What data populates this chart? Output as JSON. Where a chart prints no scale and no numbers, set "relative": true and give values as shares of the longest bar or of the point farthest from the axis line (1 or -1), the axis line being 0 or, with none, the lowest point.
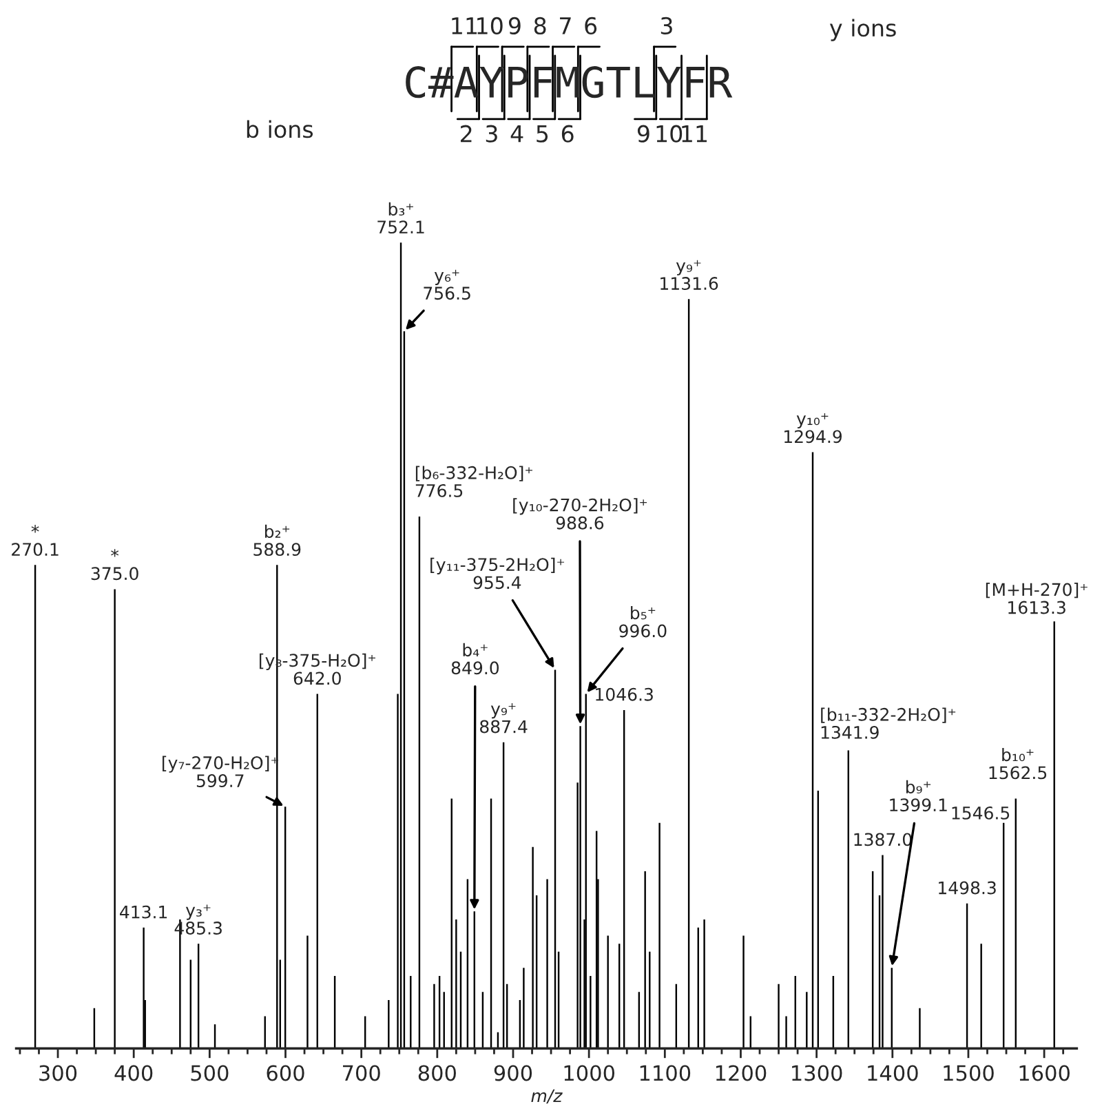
{
  "chart_data": {
    "type": "bar",
    "relative": true,
    "xlabel": "m/z",
    "color": "#000000",
    "x": [
      270.1,
      348,
      375.0,
      413.1,
      415,
      461,
      475,
      485.3,
      507,
      573,
      588.9,
      593,
      599.7,
      629,
      642.0,
      665,
      705,
      736,
      748,
      752.1,
      756.5,
      765,
      776.5,
      796,
      803,
      809,
      819,
      825,
      831,
      840,
      849.0,
      860,
      871,
      880,
      887.4,
      892,
      909,
      914,
      926,
      931,
      945,
      955.4,
      960,
      985,
      988.6,
      994,
      996.0,
      1002,
      1010,
      1012,
      1025,
      1040,
      1046.3,
      1066,
      1074,
      1080,
      1093,
      1115,
      1131.6,
      1144,
      1152,
      1203.7,
      1213,
      1250,
      1260,
      1272,
      1287,
      1294.9,
      1302,
      1322,
      1341.9,
      1374,
      1383,
      1387.0,
      1399.1,
      1436,
      1498.3,
      1517,
      1546.5,
      1562.5,
      1613.3
    ],
    "values": [
      0.6,
      0.05,
      0.57,
      0.15,
      0.06,
      0.16,
      0.11,
      0.13,
      0.03,
      0.04,
      0.6,
      0.11,
      0.3,
      0.14,
      0.44,
      0.09,
      0.04,
      0.06,
      0.44,
      1.0,
      0.89,
      0.09,
      0.66,
      0.08,
      0.09,
      0.07,
      0.31,
      0.16,
      0.12,
      0.21,
      0.17,
      0.07,
      0.31,
      0.02,
      0.38,
      0.08,
      0.06,
      0.1,
      0.25,
      0.19,
      0.21,
      0.47,
      0.12,
      0.33,
      0.4,
      0.16,
      0.44,
      0.09,
      0.27,
      0.21,
      0.14,
      0.13,
      0.42,
      0.07,
      0.22,
      0.12,
      0.28,
      0.08,
      0.93,
      0.15,
      0.16,
      0.14,
      0.04,
      0.08,
      0.04,
      0.09,
      0.07,
      0.74,
      0.32,
      0.09,
      0.37,
      0.22,
      0.19,
      0.24,
      0.1,
      0.05,
      0.18,
      0.13,
      0.28,
      0.31,
      0.53
    ],
    "xlim": [
      245,
      1643
    ],
    "xticks": [
      300,
      400,
      500,
      600,
      700,
      800,
      900,
      1000,
      1100,
      1200,
      1300,
      1400,
      1500,
      1600,
      {
        "value": 250,
        "label": null
      },
      {
        "value": 275,
        "label": null
      },
      {
        "value": 325,
        "label": null
      },
      {
        "value": 350,
        "label": null
      },
      {
        "value": 375,
        "label": null
      },
      {
        "value": 425,
        "label": null
      },
      {
        "value": 450,
        "label": null
      },
      {
        "value": 475,
        "label": null
      },
      {
        "value": 525,
        "label": null
      },
      {
        "value": 550,
        "label": null
      },
      {
        "value": 575,
        "label": null
      },
      {
        "value": 625,
        "label": null
      },
      {
        "value": 650,
        "label": null
      },
      {
        "value": 675,
        "label": null
      },
      {
        "value": 725,
        "label": null
      },
      {
        "value": 750,
        "label": null
      },
      {
        "value": 775,
        "label": null
      },
      {
        "value": 825,
        "label": null
      },
      {
        "value": 850,
        "label": null
      },
      {
        "value": 875,
        "label": null
      },
      {
        "value": 925,
        "label": null
      },
      {
        "value": 950,
        "label": null
      },
      {
        "value": 975,
        "label": null
      },
      {
        "value": 1025,
        "label": null
      },
      {
        "value": 1050,
        "label": null
      },
      {
        "value": 1075,
        "label": null
      },
      {
        "value": 1125,
        "label": null
      },
      {
        "value": 1150,
        "label": null
      },
      {
        "value": 1175,
        "label": null
      },
      {
        "value": 1225,
        "label": null
      },
      {
        "value": 1250,
        "label": null
      },
      {
        "value": 1275,
        "label": null
      },
      {
        "value": 1325,
        "label": null
      },
      {
        "value": 1350,
        "label": null
      },
      {
        "value": 1375,
        "label": null
      },
      {
        "value": 1425,
        "label": null
      },
      {
        "value": 1450,
        "label": null
      },
      {
        "value": 1475,
        "label": null
      },
      {
        "value": 1525,
        "label": null
      },
      {
        "value": 1550,
        "label": null
      },
      {
        "value": 1575,
        "label": null
      },
      {
        "value": 1625,
        "label": null
      }
    ],
    "annotations": [
      "C#AYPFMGTLYFR",
      "y ions",
      "b ions",
      "11",
      "10",
      "9",
      "8",
      "7",
      "6",
      "3",
      "2",
      "3",
      "4",
      "5",
      "6",
      "9",
      "10",
      "11",
      {
        "text": "*\n270.1",
        "x": 270.1,
        "y": 0.6
      },
      {
        "text": "*\n375.0",
        "x": 375.0,
        "y": 0.57
      },
      {
        "text": "413.1",
        "x": 413.1,
        "y": 0.15
      },
      {
        "text": "y₃⁺\n485.3",
        "x": 485.3,
        "y": 0.13
      },
      {
        "text": "b₂⁺\n588.9",
        "x": 588.9,
        "y": 0.6
      },
      {
        "text": "[y₇-270-H₂O]⁺\n599.7",
        "x": 599.7,
        "y": 0.3
      },
      {
        "text": "[y₈-375-H₂O]⁺\n642.0",
        "x": 642.0,
        "y": 0.44
      },
      {
        "text": "b₃⁺\n752.1",
        "x": 752.1,
        "y": 1.0
      },
      {
        "text": "y₆⁺\n756.5",
        "x": 756.5,
        "y": 0.89
      },
      {
        "text": "[b₆-332-H₂O]⁺\n776.5",
        "x": 776.5,
        "y": 0.66
      },
      {
        "text": "b₄⁺\n849.0",
        "x": 849.0,
        "y": 0.17
      },
      {
        "text": "y₉⁺\n887.4",
        "x": 887.4,
        "y": 0.38
      },
      {
        "text": "[y₁₁-375-2H₂O]⁺\n955.4",
        "x": 955.4,
        "y": 0.47
      },
      {
        "text": "[y₁₀-270-2H₂O]⁺\n988.6",
        "x": 988.6,
        "y": 0.4
      },
      {
        "text": "b₅⁺\n996.0",
        "x": 996.0,
        "y": 0.44
      },
      {
        "text": "1046.3",
        "x": 1046.3,
        "y": 0.42
      },
      {
        "text": "y₉⁺\n1131.6",
        "x": 1131.6,
        "y": 0.93
      },
      {
        "text": "y₁₀⁺\n1294.9",
        "x": 1294.9,
        "y": 0.74
      },
      {
        "text": "[b₁₁-332-2H₂O]⁺\n1341.9",
        "x": 1341.9,
        "y": 0.37
      },
      {
        "text": "1387.0",
        "x": 1387.0,
        "y": 0.24
      },
      {
        "text": "b₉⁺\n1399.1",
        "x": 1399.1,
        "y": 0.1
      },
      {
        "text": "1498.3",
        "x": 1498.3,
        "y": 0.18
      },
      {
        "text": "1546.5",
        "x": 1546.5,
        "y": 0.28
      },
      {
        "text": "b₁₀⁺\n1562.5",
        "x": 1562.5,
        "y": 0.31
      },
      {
        "text": "[M+H-270]⁺\n1613.3",
        "x": 1613.3,
        "y": 0.53
      }
    ]
  }
}
